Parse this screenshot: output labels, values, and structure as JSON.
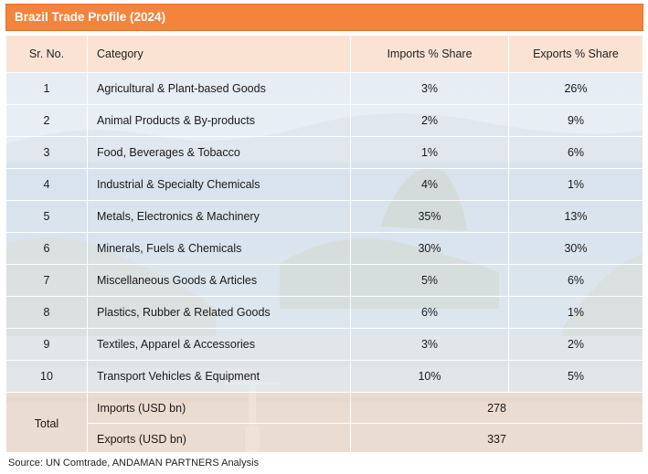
{
  "title": "Brazil Trade Profile (2024)",
  "columns": {
    "sr": "Sr. No.",
    "category": "Category",
    "imports": "Imports % Share",
    "exports": "Exports % Share"
  },
  "rows": [
    {
      "sr": "1",
      "category": "Agricultural & Plant-based Goods",
      "imports": "3%",
      "exports": "26%"
    },
    {
      "sr": "2",
      "category": "Animal Products & By-products",
      "imports": "2%",
      "exports": "9%"
    },
    {
      "sr": "3",
      "category": "Food, Beverages & Tobacco",
      "imports": "1%",
      "exports": "6%"
    },
    {
      "sr": "4",
      "category": "Industrial & Specialty Chemicals",
      "imports": "4%",
      "exports": "1%"
    },
    {
      "sr": "5",
      "category": "Metals, Electronics & Machinery",
      "imports": "35%",
      "exports": "13%"
    },
    {
      "sr": "6",
      "category": "Minerals, Fuels & Chemicals",
      "imports": "30%",
      "exports": "30%"
    },
    {
      "sr": "7",
      "category": "Miscellaneous Goods & Articles",
      "imports": "5%",
      "exports": "6%"
    },
    {
      "sr": "8",
      "category": "Plastics, Rubber & Related Goods",
      "imports": "6%",
      "exports": "1%"
    },
    {
      "sr": "9",
      "category": "Textiles, Apparel & Accessories",
      "imports": "3%",
      "exports": "2%"
    },
    {
      "sr": "10",
      "category": "Transport Vehicles & Equipment",
      "imports": "10%",
      "exports": "5%"
    }
  ],
  "total": {
    "label": "Total",
    "imports_label": "Imports (USD bn)",
    "imports_value": "278",
    "exports_label": "Exports (USD bn)",
    "exports_value": "337"
  },
  "source": "Source: UN Comtrade, ANDAMAN PARTNERS Analysis",
  "colors": {
    "title_bar": "#f4843c",
    "header_fill": "#fbe3d3",
    "row_fill": "#eef2f8"
  }
}
